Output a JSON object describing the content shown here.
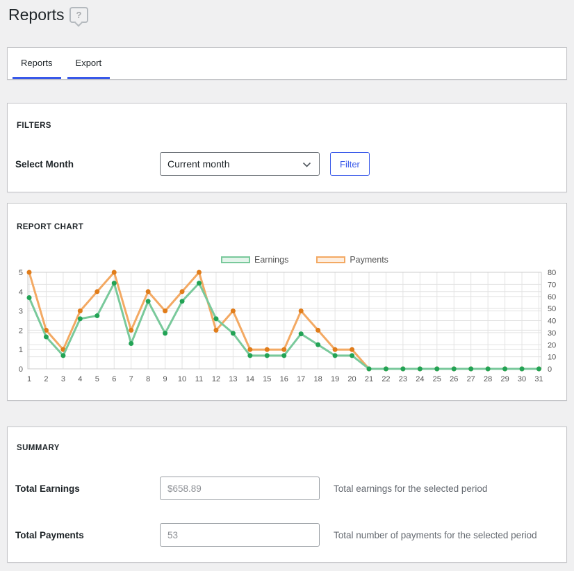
{
  "page": {
    "title": "Reports",
    "help_glyph": "?"
  },
  "colors": {
    "accent": "#3858e9",
    "grid": "#e3e3e3",
    "plot_border": "#cccccc",
    "axis_text": "#545454"
  },
  "tabs": [
    {
      "label": "Reports",
      "active": true
    },
    {
      "label": "Export",
      "active": true
    }
  ],
  "filters": {
    "heading": "FILTERS",
    "label": "Select Month",
    "select_value": "Current month",
    "button": "Filter"
  },
  "report_chart": {
    "heading": "REPORT CHART"
  },
  "chart_data": {
    "type": "line",
    "x": [
      1,
      2,
      3,
      4,
      5,
      6,
      7,
      8,
      9,
      10,
      11,
      12,
      13,
      14,
      15,
      16,
      17,
      18,
      19,
      20,
      21,
      22,
      23,
      24,
      25,
      26,
      27,
      28,
      29,
      30,
      31
    ],
    "series": [
      {
        "name": "Earnings",
        "axis": "right",
        "color": "#79c99b",
        "point_color": "#22a355",
        "values": [
          59,
          26.5,
          11,
          41.5,
          44,
          71,
          21,
          56,
          29.5,
          56,
          71,
          41.5,
          29.5,
          11,
          11,
          11,
          29,
          20,
          11,
          11,
          0,
          0,
          0,
          0,
          0,
          0,
          0,
          0,
          0,
          0,
          0
        ]
      },
      {
        "name": "Payments",
        "axis": "left",
        "color": "#f3a963",
        "point_color": "#e07c1a",
        "values": [
          5,
          2,
          1,
          3,
          4,
          5,
          2,
          4,
          3,
          4,
          5,
          2,
          3,
          1,
          1,
          1,
          3,
          2,
          1,
          1,
          0,
          0,
          0,
          0,
          0,
          0,
          0,
          0,
          0,
          0,
          0
        ]
      }
    ],
    "left_axis": {
      "ticks": [
        0,
        1,
        2,
        3,
        4,
        5
      ],
      "range": [
        0,
        5
      ]
    },
    "right_axis": {
      "ticks": [
        0,
        10,
        20,
        30,
        40,
        50,
        60,
        70,
        80
      ],
      "range": [
        0,
        80
      ]
    },
    "grid": true,
    "legend_position": "top-center"
  },
  "summary": {
    "heading": "SUMMARY",
    "rows": [
      {
        "label": "Total Earnings",
        "value": "$658.89",
        "description": "Total earnings for the selected period"
      },
      {
        "label": "Total Payments",
        "value": "53",
        "description": "Total number of payments for the selected period"
      }
    ]
  }
}
